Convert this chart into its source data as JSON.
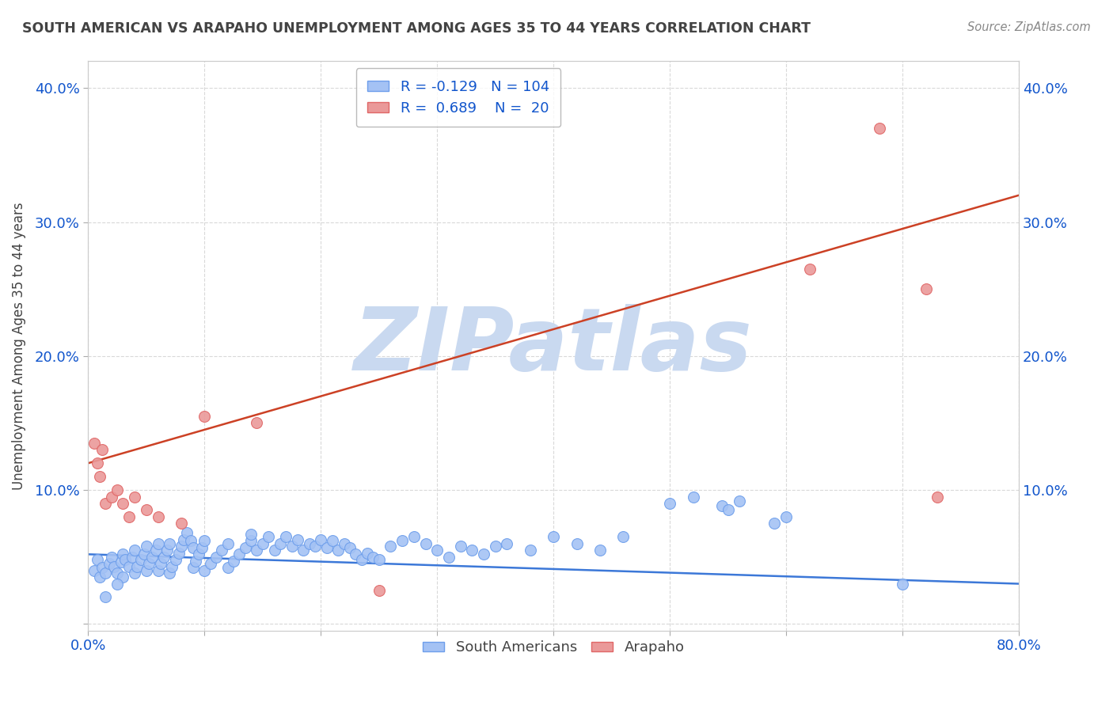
{
  "title": "SOUTH AMERICAN VS ARAPAHO UNEMPLOYMENT AMONG AGES 35 TO 44 YEARS CORRELATION CHART",
  "source": "Source: ZipAtlas.com",
  "ylabel": "Unemployment Among Ages 35 to 44 years",
  "xlim": [
    0.0,
    0.8
  ],
  "ylim": [
    -0.005,
    0.42
  ],
  "blue_color": "#a4c2f4",
  "blue_edge_color": "#6d9eeb",
  "pink_color": "#ea9999",
  "pink_edge_color": "#e06666",
  "blue_line_color": "#3c78d8",
  "pink_line_color": "#cc4125",
  "R_blue": -0.129,
  "N_blue": 104,
  "R_pink": 0.689,
  "N_pink": 20,
  "watermark": "ZIPatlas",
  "watermark_color": "#c9d9f0",
  "title_color": "#434343",
  "axis_label_color": "#434343",
  "tick_color": "#1155cc",
  "source_color": "#888888",
  "blue_scatter_x": [
    0.005,
    0.008,
    0.01,
    0.012,
    0.015,
    0.018,
    0.02,
    0.022,
    0.025,
    0.028,
    0.03,
    0.03,
    0.032,
    0.035,
    0.038,
    0.04,
    0.04,
    0.042,
    0.045,
    0.048,
    0.05,
    0.05,
    0.052,
    0.055,
    0.058,
    0.06,
    0.06,
    0.062,
    0.065,
    0.068,
    0.07,
    0.07,
    0.072,
    0.075,
    0.078,
    0.08,
    0.082,
    0.085,
    0.088,
    0.09,
    0.09,
    0.092,
    0.095,
    0.098,
    0.1,
    0.1,
    0.105,
    0.11,
    0.115,
    0.12,
    0.12,
    0.125,
    0.13,
    0.135,
    0.14,
    0.14,
    0.145,
    0.15,
    0.155,
    0.16,
    0.165,
    0.17,
    0.175,
    0.18,
    0.185,
    0.19,
    0.195,
    0.2,
    0.205,
    0.21,
    0.215,
    0.22,
    0.225,
    0.23,
    0.235,
    0.24,
    0.245,
    0.25,
    0.26,
    0.27,
    0.28,
    0.29,
    0.3,
    0.31,
    0.32,
    0.33,
    0.34,
    0.35,
    0.36,
    0.38,
    0.4,
    0.42,
    0.44,
    0.46,
    0.5,
    0.52,
    0.545,
    0.55,
    0.56,
    0.59,
    0.6,
    0.7,
    0.015,
    0.025
  ],
  "blue_scatter_y": [
    0.04,
    0.048,
    0.035,
    0.042,
    0.038,
    0.045,
    0.05,
    0.043,
    0.038,
    0.046,
    0.052,
    0.035,
    0.048,
    0.043,
    0.05,
    0.055,
    0.038,
    0.043,
    0.048,
    0.052,
    0.058,
    0.04,
    0.045,
    0.05,
    0.055,
    0.06,
    0.04,
    0.045,
    0.05,
    0.055,
    0.06,
    0.038,
    0.043,
    0.048,
    0.053,
    0.058,
    0.063,
    0.068,
    0.062,
    0.057,
    0.042,
    0.047,
    0.052,
    0.057,
    0.062,
    0.04,
    0.045,
    0.05,
    0.055,
    0.06,
    0.042,
    0.047,
    0.052,
    0.057,
    0.062,
    0.067,
    0.055,
    0.06,
    0.065,
    0.055,
    0.06,
    0.065,
    0.058,
    0.063,
    0.055,
    0.06,
    0.058,
    0.063,
    0.057,
    0.062,
    0.055,
    0.06,
    0.057,
    0.052,
    0.048,
    0.053,
    0.05,
    0.048,
    0.058,
    0.062,
    0.065,
    0.06,
    0.055,
    0.05,
    0.058,
    0.055,
    0.052,
    0.058,
    0.06,
    0.055,
    0.065,
    0.06,
    0.055,
    0.065,
    0.09,
    0.095,
    0.088,
    0.085,
    0.092,
    0.075,
    0.08,
    0.03,
    0.02,
    0.03
  ],
  "pink_scatter_x": [
    0.005,
    0.008,
    0.01,
    0.012,
    0.015,
    0.02,
    0.025,
    0.03,
    0.035,
    0.04,
    0.05,
    0.08,
    0.1,
    0.145,
    0.25,
    0.62,
    0.68,
    0.72,
    0.73,
    0.06
  ],
  "pink_scatter_y": [
    0.135,
    0.12,
    0.11,
    0.13,
    0.09,
    0.095,
    0.1,
    0.09,
    0.08,
    0.095,
    0.085,
    0.075,
    0.155,
    0.15,
    0.025,
    0.265,
    0.37,
    0.25,
    0.095,
    0.08
  ],
  "pink_line_start_y": 0.12,
  "pink_line_end_y": 0.32,
  "blue_line_start_y": 0.052,
  "blue_line_end_y": 0.03
}
